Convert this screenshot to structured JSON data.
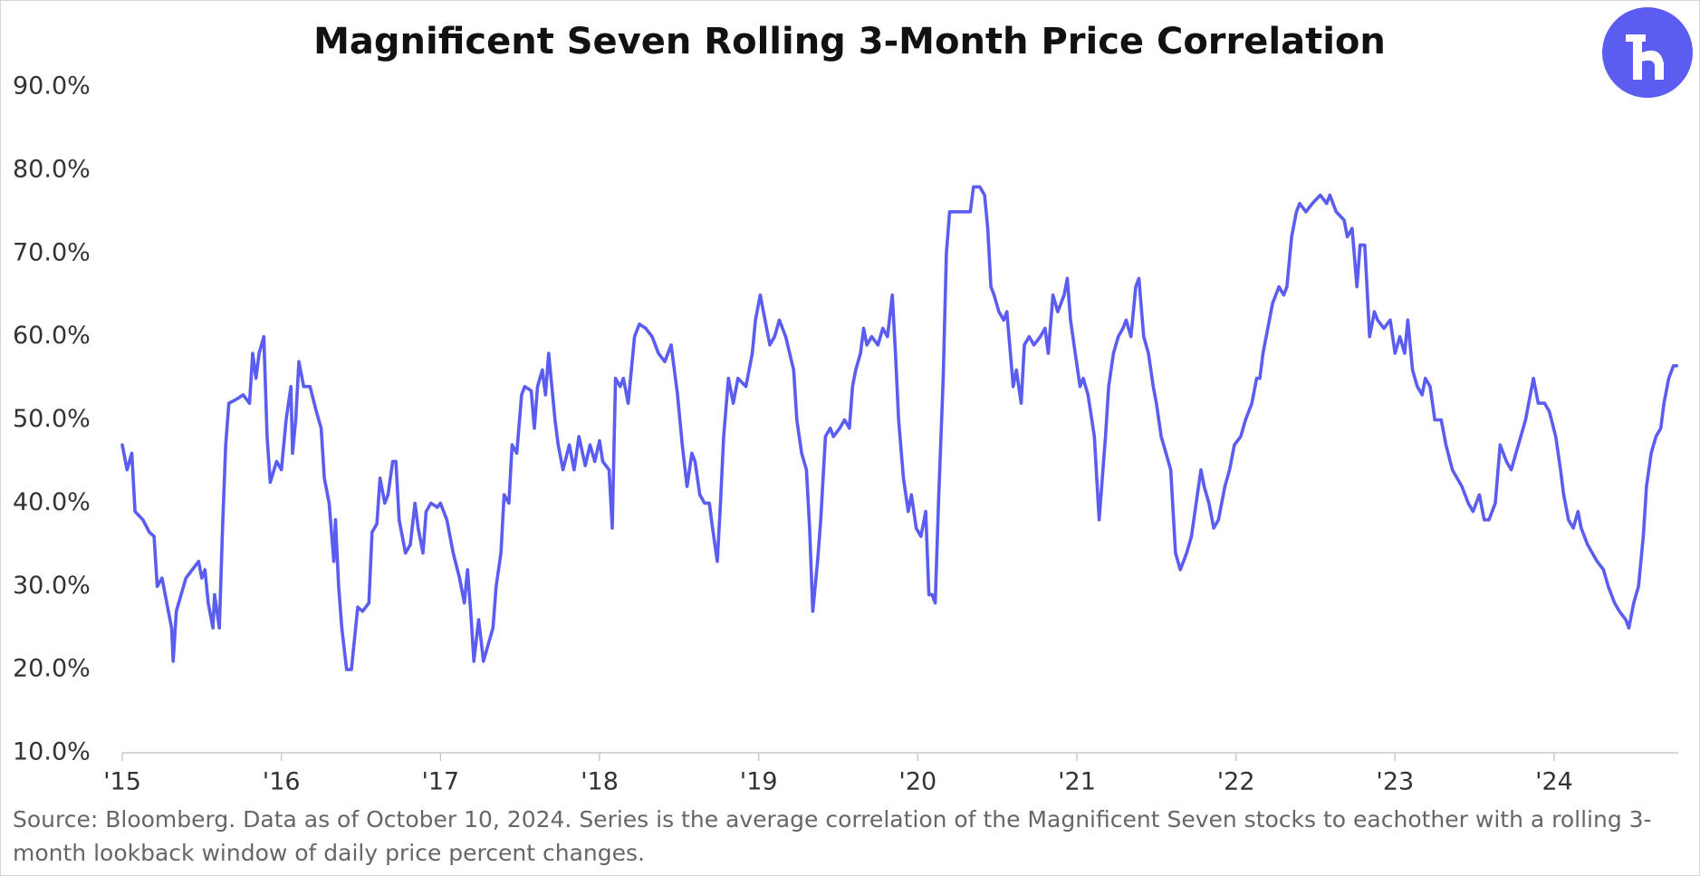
{
  "chart_data": {
    "type": "line",
    "title": "Magnificent Seven Rolling 3-Month Price Correlation",
    "note": "Source: Bloomberg. Data as of October 10, 2024. Series is the average correlation of the Magnificent Seven stocks to eachother with a rolling 3-month lookback window of daily price percent changes.",
    "color": "#5b5cf0",
    "grid": false,
    "xlim": [
      2015,
      2024.78
    ],
    "ylim": [
      10,
      90
    ],
    "yticks": [
      {
        "value": 10,
        "label": "10.0%"
      },
      {
        "value": 20,
        "label": "20.0%"
      },
      {
        "value": 30,
        "label": "30.0%"
      },
      {
        "value": 40,
        "label": "40.0%"
      },
      {
        "value": 50,
        "label": "50.0%"
      },
      {
        "value": 60,
        "label": "60.0%"
      },
      {
        "value": 70,
        "label": "70.0%"
      },
      {
        "value": 80,
        "label": "80.0%"
      },
      {
        "value": 90,
        "label": "90.0%"
      }
    ],
    "xticks": [
      {
        "value": 2015,
        "label": "'15"
      },
      {
        "value": 2016,
        "label": "'16"
      },
      {
        "value": 2017,
        "label": "'17"
      },
      {
        "value": 2018,
        "label": "'18"
      },
      {
        "value": 2019,
        "label": "'19"
      },
      {
        "value": 2020,
        "label": "'20"
      },
      {
        "value": 2021,
        "label": "'21"
      },
      {
        "value": 2022,
        "label": "'22"
      },
      {
        "value": 2023,
        "label": "'23"
      },
      {
        "value": 2024,
        "label": "'24"
      }
    ],
    "x": [
      2015,
      2015.03,
      2015.06,
      2015.08,
      2015.13,
      2015.17,
      2015.2,
      2015.22,
      2015.25,
      2015.29,
      2015.31,
      2015.32,
      2015.34,
      2015.37,
      2015.4,
      2015.44,
      2015.48,
      2015.5,
      2015.52,
      2015.54,
      2015.57,
      2015.58,
      2015.61,
      2015.63,
      2015.65,
      2015.67,
      2015.72,
      2015.76,
      2015.8,
      2015.82,
      2015.84,
      2015.86,
      2015.89,
      2015.91,
      2015.93,
      2015.97,
      2016,
      2016.03,
      2016.06,
      2016.07,
      2016.09,
      2016.11,
      2016.14,
      2016.18,
      2016.22,
      2016.25,
      2016.27,
      2016.3,
      2016.33,
      2016.34,
      2016.36,
      2016.38,
      2016.41,
      2016.44,
      2016.48,
      2016.51,
      2016.55,
      2016.57,
      2016.6,
      2016.62,
      2016.65,
      2016.67,
      2016.7,
      2016.72,
      2016.74,
      2016.76,
      2016.78,
      2016.81,
      2016.84,
      2016.86,
      2016.89,
      2016.91,
      2016.94,
      2016.98,
      2017,
      2017.04,
      2017.08,
      2017.12,
      2017.15,
      2017.17,
      2017.19,
      2017.21,
      2017.24,
      2017.27,
      2017.3,
      2017.33,
      2017.35,
      2017.38,
      2017.4,
      2017.43,
      2017.45,
      2017.48,
      2017.51,
      2017.53,
      2017.57,
      2017.59,
      2017.61,
      2017.64,
      2017.66,
      2017.68,
      2017.72,
      2017.74,
      2017.77,
      2017.81,
      2017.84,
      2017.87,
      2017.91,
      2017.94,
      2017.97,
      2018,
      2018.02,
      2018.06,
      2018.08,
      2018.1,
      2018.13,
      2018.15,
      2018.18,
      2018.2,
      2018.22,
      2018.25,
      2018.29,
      2018.33,
      2018.37,
      2018.41,
      2018.45,
      2018.49,
      2018.52,
      2018.55,
      2018.58,
      2018.6,
      2018.63,
      2018.66,
      2018.69,
      2018.71,
      2018.74,
      2018.76,
      2018.78,
      2018.81,
      2018.84,
      2018.87,
      2018.92,
      2018.96,
      2018.98,
      2019.01,
      2019.04,
      2019.07,
      2019.1,
      2019.13,
      2019.17,
      2019.22,
      2019.24,
      2019.27,
      2019.3,
      2019.32,
      2019.34,
      2019.37,
      2019.39,
      2019.42,
      2019.45,
      2019.47,
      2019.51,
      2019.54,
      2019.57,
      2019.59,
      2019.61,
      2019.64,
      2019.66,
      2019.68,
      2019.71,
      2019.75,
      2019.78,
      2019.81,
      2019.84,
      2019.86,
      2019.88,
      2019.91,
      2019.94,
      2019.96,
      2019.99,
      2020.02,
      2020.05,
      2020.07,
      2020.09,
      2020.11,
      2020.13,
      2020.16,
      2020.18,
      2020.2,
      2020.24,
      2020.28,
      2020.33,
      2020.35,
      2020.39,
      2020.42,
      2020.44,
      2020.46,
      2020.48,
      2020.51,
      2020.54,
      2020.56,
      2020.6,
      2020.62,
      2020.65,
      2020.67,
      2020.7,
      2020.73,
      2020.77,
      2020.8,
      2020.82,
      2020.85,
      2020.88,
      2020.92,
      2020.94,
      2020.96,
      2020.99,
      2021.02,
      2021.04,
      2021.07,
      2021.11,
      2021.14,
      2021.16,
      2021.18,
      2021.2,
      2021.23,
      2021.26,
      2021.29,
      2021.31,
      2021.34,
      2021.37,
      2021.39,
      2021.42,
      2021.45,
      2021.48,
      2021.5,
      2021.53,
      2021.56,
      2021.59,
      2021.62,
      2021.65,
      2021.69,
      2021.72,
      2021.75,
      2021.78,
      2021.8,
      2021.83,
      2021.86,
      2021.89,
      2021.93,
      2021.96,
      2021.99,
      2022.03,
      2022.06,
      2022.1,
      2022.13,
      2022.15,
      2022.17,
      2022.2,
      2022.23,
      2022.27,
      2022.3,
      2022.32,
      2022.35,
      2022.38,
      2022.4,
      2022.44,
      2022.48,
      2022.53,
      2022.57,
      2022.59,
      2022.63,
      2022.68,
      2022.7,
      2022.73,
      2022.76,
      2022.78,
      2022.81,
      2022.84,
      2022.87,
      2022.89,
      2022.93,
      2022.97,
      2023,
      2023.03,
      2023.06,
      2023.08,
      2023.11,
      2023.14,
      2023.17,
      2023.19,
      2023.22,
      2023.25,
      2023.29,
      2023.32,
      2023.36,
      2023.39,
      2023.42,
      2023.46,
      2023.49,
      2023.53,
      2023.56,
      2023.59,
      2023.63,
      2023.66,
      2023.7,
      2023.73,
      2023.76,
      2023.79,
      2023.82,
      2023.85,
      2023.87,
      2023.9,
      2023.94,
      2023.97,
      2024.01,
      2024.04,
      2024.06,
      2024.09,
      2024.12,
      2024.15,
      2024.17,
      2024.21,
      2024.24,
      2024.27,
      2024.31,
      2024.34,
      2024.38,
      2024.41,
      2024.45,
      2024.47,
      2024.5,
      2024.53,
      2024.56,
      2024.58,
      2024.61,
      2024.64,
      2024.67,
      2024.69,
      2024.72,
      2024.75,
      2024.77
    ],
    "values": [
      47,
      44,
      46,
      39,
      38,
      36.5,
      36,
      30,
      31,
      27,
      25,
      21,
      27,
      29,
      31,
      32,
      33,
      31,
      32,
      28,
      25,
      29,
      25,
      37,
      47,
      52,
      52.5,
      53,
      52,
      58,
      55,
      58,
      60,
      48,
      42.5,
      45,
      44,
      50,
      54,
      46,
      50,
      57,
      54,
      54,
      51,
      49,
      43,
      40,
      33,
      38,
      30,
      25,
      20,
      20,
      27.5,
      27,
      28,
      36.5,
      37.5,
      43,
      40,
      41,
      45,
      45,
      38,
      36,
      34,
      35,
      40,
      37,
      34,
      39,
      40,
      39.5,
      40,
      38,
      34,
      31,
      28,
      32,
      27,
      21,
      26,
      21,
      23,
      25,
      30,
      34,
      41,
      40,
      47,
      46,
      53,
      54,
      53.5,
      49,
      54,
      56,
      53,
      58,
      50,
      47,
      44,
      47,
      44,
      48,
      44.5,
      47,
      45,
      47.5,
      45,
      44,
      37,
      55,
      54,
      55,
      52,
      56,
      60,
      61.5,
      61,
      60,
      58,
      57,
      59,
      53,
      47,
      42,
      46,
      45,
      41,
      40,
      40,
      37,
      33,
      40,
      48,
      55,
      52,
      55,
      54,
      58,
      62,
      65,
      62,
      59,
      60,
      62,
      60,
      56,
      50,
      46,
      44,
      37,
      27,
      33,
      38,
      48,
      49,
      48,
      49,
      50,
      49,
      54,
      56,
      58,
      61,
      59,
      60,
      59,
      61,
      60,
      65,
      58,
      50,
      43,
      39,
      41,
      37,
      36,
      39,
      29,
      29,
      28,
      40,
      55,
      70,
      75,
      75,
      75,
      75,
      78,
      78,
      77,
      73,
      66,
      65,
      63,
      62,
      63,
      54,
      56,
      52,
      59,
      60,
      59,
      60,
      61,
      58,
      65,
      63,
      65,
      67,
      62,
      58,
      54,
      55,
      53,
      48,
      38,
      43,
      48,
      54,
      58,
      60,
      61,
      62,
      60,
      66,
      67,
      60,
      58,
      54,
      52,
      48,
      46,
      44,
      34,
      32,
      34,
      36,
      40,
      44,
      42,
      40,
      37,
      38,
      42,
      44,
      47,
      48,
      50,
      52,
      55,
      55,
      58,
      61,
      64,
      66,
      65,
      66,
      72,
      75,
      76,
      75,
      76,
      77,
      76,
      77,
      75,
      74,
      72,
      73,
      66,
      71,
      71,
      60,
      63,
      62,
      61,
      62,
      58,
      60,
      58,
      62,
      56,
      54,
      53,
      55,
      54,
      50,
      50,
      47,
      44,
      43,
      42,
      40,
      39,
      41,
      38,
      38,
      40,
      47,
      45,
      44,
      46,
      48,
      50,
      53,
      55,
      52,
      52,
      51,
      48,
      44,
      41,
      38,
      37,
      39,
      37,
      35,
      34,
      33,
      32,
      30,
      28,
      27,
      26,
      25,
      28,
      30,
      36,
      42,
      46,
      48,
      49,
      52,
      55,
      56.5,
      56.5
    ]
  }
}
